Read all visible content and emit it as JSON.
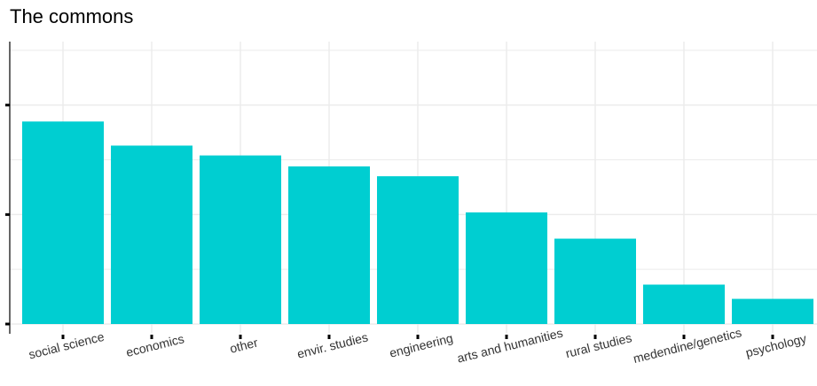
{
  "chart_data": {
    "type": "bar",
    "title": "The commons",
    "xlabel": "",
    "ylabel": "",
    "categories": [
      "social science",
      "economics",
      "other",
      "envir. studies",
      "engineering",
      "arts and humanities",
      "rural studies",
      "medendine/genetics",
      "psychology"
    ],
    "values": [
      185,
      163,
      154,
      144,
      135,
      102,
      78,
      36,
      23
    ],
    "ylim": [
      0,
      258
    ],
    "y_ticks": [
      0,
      100,
      200
    ],
    "y_tick_labels_visible": false,
    "grid": true,
    "legend": "none",
    "bar_color": "#00CED1",
    "grid_color": "#EBEBEB",
    "axis_color": "#000000"
  }
}
